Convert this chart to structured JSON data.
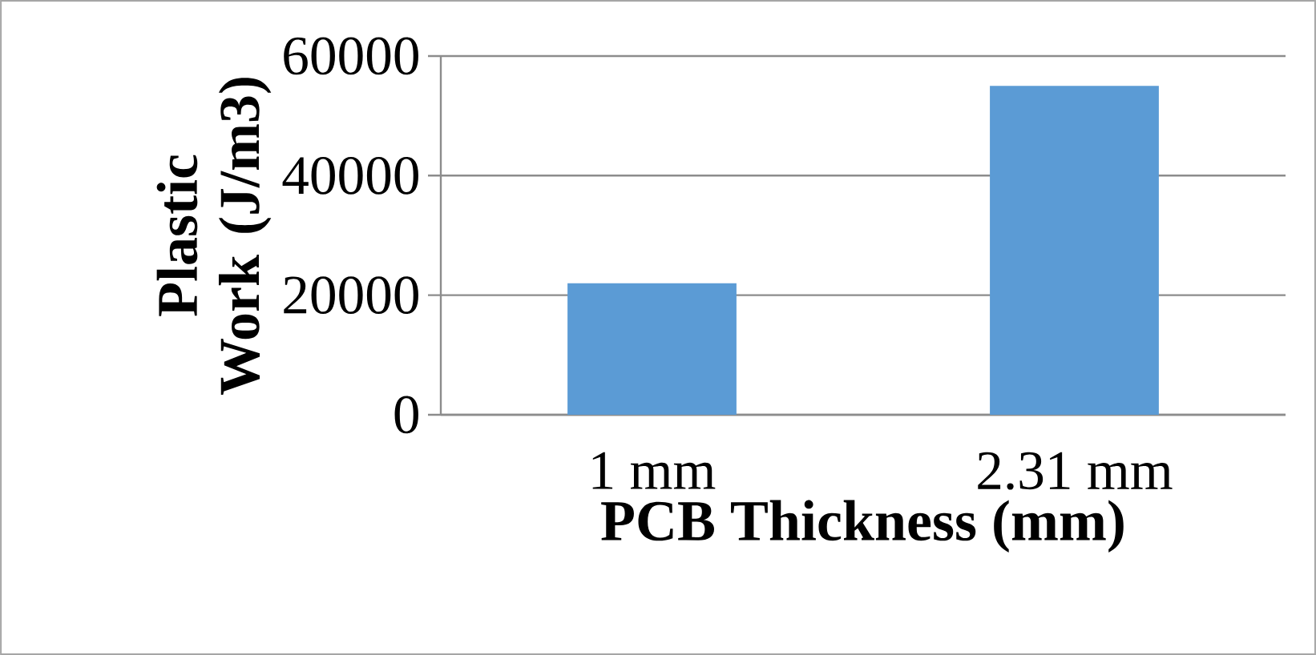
{
  "chart_data": {
    "type": "bar",
    "xlabel": "PCB Thickness (mm)",
    "ylabel": "Plastic Work (J/m3)",
    "categories": [
      "1 mm",
      "2.31 mm"
    ],
    "series": [
      {
        "color": "#5b9bd5",
        "values": [
          22000,
          55000
        ]
      }
    ],
    "ylim": [
      0,
      60000
    ],
    "yticks": [
      0,
      20000,
      40000,
      60000
    ],
    "grid": "y"
  }
}
